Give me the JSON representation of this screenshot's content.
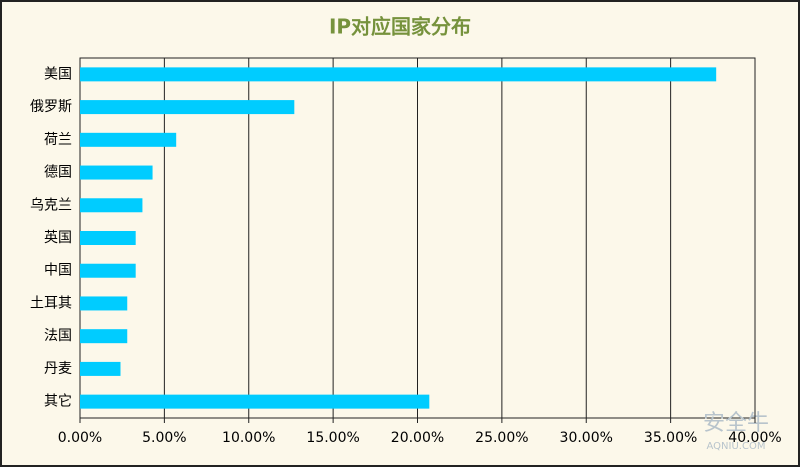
{
  "chart_data": {
    "type": "bar",
    "orientation": "horizontal",
    "title": "IP对应国家分布",
    "categories": [
      "美国",
      "俄罗斯",
      "荷兰",
      "德国",
      "乌克兰",
      "英国",
      "中国",
      "土耳其",
      "法国",
      "丹麦",
      "其它"
    ],
    "values": [
      37.7,
      12.7,
      5.7,
      4.3,
      3.7,
      3.3,
      3.3,
      2.8,
      2.8,
      2.4,
      20.7
    ],
    "color": "#00ccff",
    "xlim": [
      0,
      40
    ],
    "xticks": [
      {
        "value": 0,
        "label": "0.00%"
      },
      {
        "value": 5,
        "label": "5.00%"
      },
      {
        "value": 10,
        "label": "10.00%"
      },
      {
        "value": 15,
        "label": "15.00%"
      },
      {
        "value": 20,
        "label": "20.00%"
      },
      {
        "value": 25,
        "label": "25.00%"
      },
      {
        "value": 30,
        "label": "30.00%"
      },
      {
        "value": 35,
        "label": "35.00%"
      },
      {
        "value": 40,
        "label": "40.00%"
      }
    ],
    "grid": true,
    "watermark": "安全牛",
    "watermark_url": "AQNIU.COM"
  }
}
